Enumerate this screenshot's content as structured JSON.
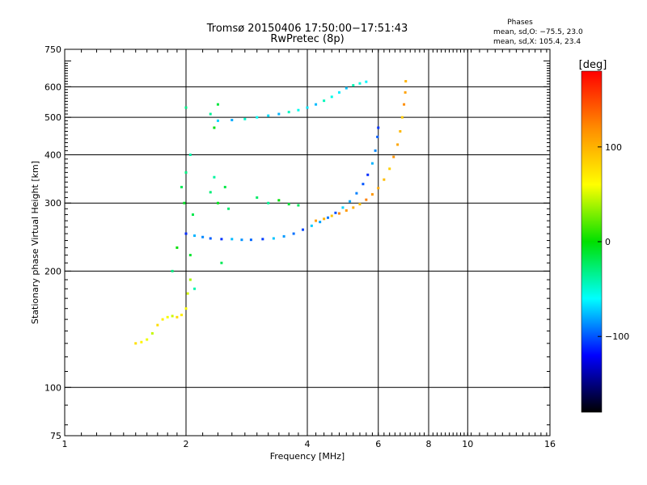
{
  "header": {
    "title_line1": "Tromsø 20150406 17:50:00−17:51:43",
    "title_line2": "RwPretec (8p)",
    "phases_title": "Phases",
    "phases_o": "mean, sd,O: −75.5, 23.0",
    "phases_x": "mean, sd,X: 105.4, 23.4"
  },
  "chart_data": {
    "type": "scatter",
    "xlabel": "Frequency [MHz]",
    "ylabel": "Stationary phase Virtual Height [km]",
    "x_scale": "log",
    "y_scale": "log",
    "xlim": [
      1,
      16
    ],
    "ylim": [
      75,
      750
    ],
    "x_ticks": [
      1,
      2,
      4,
      6,
      8,
      10,
      16
    ],
    "x_tick_labels": [
      "1",
      "2",
      "4",
      "6",
      "8",
      "10",
      "16"
    ],
    "y_ticks": [
      75,
      100,
      200,
      300,
      400,
      500,
      600,
      750
    ],
    "y_tick_labels": [
      "75",
      "100",
      "200",
      "300",
      "400",
      "500",
      "600",
      "750"
    ],
    "grid": true,
    "grid_x": [
      2,
      4,
      6,
      8,
      10
    ],
    "grid_y": [
      100,
      200,
      300,
      400,
      500,
      600
    ],
    "colorbar": {
      "label": "[deg]",
      "range": [
        -180,
        180
      ],
      "ticks": [
        100,
        0,
        -100
      ],
      "tick_labels": [
        "100",
        "0",
        "−100"
      ],
      "colors": [
        "#ff0000",
        "#ff8c00",
        "#ffff00",
        "#00e000",
        "#00ffff",
        "#0000ff",
        "#000000"
      ]
    },
    "series": [
      {
        "description_role": "o_trace_F_layer",
        "phase": -90,
        "points": [
          [
            2.0,
            250
          ],
          [
            2.1,
            247
          ],
          [
            2.2,
            245
          ],
          [
            2.3,
            243
          ],
          [
            2.45,
            242
          ],
          [
            2.6,
            242
          ],
          [
            2.75,
            241
          ],
          [
            2.9,
            241
          ],
          [
            3.1,
            242
          ],
          [
            3.3,
            243
          ],
          [
            3.5,
            246
          ],
          [
            3.7,
            250
          ],
          [
            3.9,
            256
          ],
          [
            4.1,
            262
          ],
          [
            4.3,
            268
          ],
          [
            4.5,
            275
          ],
          [
            4.7,
            283
          ],
          [
            4.9,
            292
          ],
          [
            5.1,
            303
          ],
          [
            5.3,
            318
          ],
          [
            5.5,
            336
          ],
          [
            5.65,
            355
          ],
          [
            5.8,
            380
          ],
          [
            5.9,
            410
          ],
          [
            5.97,
            445
          ],
          [
            6.0,
            470
          ]
        ]
      },
      {
        "description_role": "x_trace_F_layer",
        "phase": 105,
        "points": [
          [
            4.2,
            270
          ],
          [
            4.4,
            273
          ],
          [
            4.6,
            278
          ],
          [
            4.8,
            282
          ],
          [
            5.0,
            287
          ],
          [
            5.2,
            292
          ],
          [
            5.4,
            298
          ],
          [
            5.6,
            306
          ],
          [
            5.8,
            316
          ],
          [
            6.0,
            328
          ],
          [
            6.2,
            345
          ],
          [
            6.4,
            368
          ],
          [
            6.55,
            395
          ],
          [
            6.7,
            425
          ],
          [
            6.8,
            460
          ],
          [
            6.88,
            500
          ],
          [
            6.95,
            540
          ],
          [
            7.0,
            580
          ],
          [
            7.02,
            620
          ]
        ]
      },
      {
        "description_role": "multihop_trace",
        "phase": -60,
        "points": [
          [
            2.4,
            490
          ],
          [
            2.6,
            492
          ],
          [
            2.8,
            495
          ],
          [
            3.0,
            500
          ],
          [
            3.2,
            505
          ],
          [
            3.4,
            510
          ],
          [
            3.6,
            516
          ],
          [
            3.8,
            522
          ],
          [
            4.0,
            530
          ],
          [
            4.2,
            540
          ],
          [
            4.4,
            552
          ],
          [
            4.6,
            565
          ],
          [
            4.8,
            580
          ],
          [
            5.0,
            595
          ],
          [
            5.2,
            605
          ],
          [
            5.4,
            612
          ],
          [
            5.6,
            618
          ]
        ]
      },
      {
        "description_role": "lower_layer_trace",
        "phase": 60,
        "points": [
          [
            1.5,
            130
          ],
          [
            1.55,
            131
          ],
          [
            1.6,
            133
          ],
          [
            1.65,
            138
          ],
          [
            1.7,
            145
          ],
          [
            1.75,
            150
          ],
          [
            1.8,
            152
          ],
          [
            1.85,
            153
          ],
          [
            1.9,
            152
          ],
          [
            1.95,
            154
          ],
          [
            2.0,
            160
          ],
          [
            2.02,
            175
          ],
          [
            2.05,
            190
          ]
        ]
      },
      {
        "description_role": "spread_echoes",
        "phase": -20,
        "points": [
          [
            1.95,
            330
          ],
          [
            2.0,
            360
          ],
          [
            2.05,
            400
          ],
          [
            1.98,
            300
          ],
          [
            2.08,
            280
          ],
          [
            2.3,
            320
          ],
          [
            2.35,
            350
          ],
          [
            2.4,
            300
          ],
          [
            2.5,
            330
          ],
          [
            2.55,
            290
          ],
          [
            2.3,
            510
          ],
          [
            2.35,
            470
          ],
          [
            2.4,
            540
          ],
          [
            3.0,
            310
          ],
          [
            3.2,
            300
          ],
          [
            3.4,
            305
          ],
          [
            3.6,
            298
          ],
          [
            3.8,
            296
          ],
          [
            2.0,
            530
          ],
          [
            1.9,
            230
          ],
          [
            2.05,
            220
          ],
          [
            2.45,
            210
          ],
          [
            1.85,
            200
          ],
          [
            2.1,
            180
          ]
        ]
      }
    ]
  }
}
